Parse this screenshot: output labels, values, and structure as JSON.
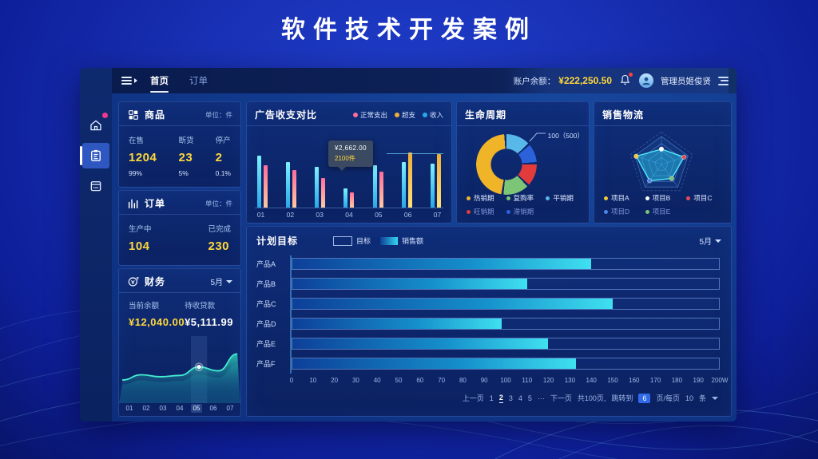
{
  "page": {
    "title": "软件技术开发案例"
  },
  "theme": {
    "accent_yellow": "#ffd83a",
    "accent_cyan": "#35c8f5",
    "background_blue": "#1830b4"
  },
  "topbar": {
    "tabs": [
      {
        "label": "首页",
        "active": true
      },
      {
        "label": "订单",
        "active": false
      }
    ],
    "balance_label": "账户余额：",
    "balance_value": "¥222,250.50",
    "admin_name": "管理员姬俊贤"
  },
  "sidebar": {
    "items": [
      {
        "name": "home",
        "badge": true,
        "active": false
      },
      {
        "name": "orders-board",
        "badge": false,
        "active": true
      },
      {
        "name": "archive",
        "badge": false,
        "active": false
      }
    ]
  },
  "goods_card": {
    "title": "商品",
    "unit": "单位：件",
    "stats": [
      {
        "label": "在售",
        "value": "1204",
        "sub": "99%"
      },
      {
        "label": "断货",
        "value": "23",
        "sub": "5%"
      },
      {
        "label": "停产",
        "value": "2",
        "sub": "0.1%"
      }
    ]
  },
  "orders_card": {
    "title": "订单",
    "unit": "单位：件",
    "stats": [
      {
        "label": "生产中",
        "value": "104"
      },
      {
        "label": "已完成",
        "value": "230"
      }
    ]
  },
  "finance_card": {
    "title": "财务",
    "period": "5月",
    "stats": [
      {
        "label": "当前余额",
        "value": "¥12,040.00"
      },
      {
        "label": "待收贷款",
        "value": "¥5,111.99"
      }
    ],
    "trend": {
      "type": "area",
      "months": [
        "01",
        "02",
        "03",
        "04",
        "05",
        "06",
        "07"
      ],
      "values": [
        28,
        36,
        33,
        35,
        48,
        42,
        68
      ],
      "highlight_index": 4,
      "line_color": "#45ecd2"
    }
  },
  "ad_chart": {
    "title": "广告收支对比",
    "type": "bar",
    "legend": [
      {
        "label": "正常支出",
        "color": "#ff6e9c",
        "color2": "#ffc9a0"
      },
      {
        "label": "超支",
        "color": "#f0ae36",
        "color2": "#ffe27a"
      },
      {
        "label": "收入",
        "color": "#2aa8e8",
        "color2": "#7ef0ff"
      }
    ],
    "categories": [
      "01",
      "02",
      "03",
      "04",
      "05",
      "06",
      "07"
    ],
    "income_values": [
      71,
      62,
      55,
      26,
      58,
      62,
      60
    ],
    "expense_values": [
      58,
      51,
      40,
      21,
      49,
      75,
      73
    ],
    "expense_types": [
      "normal",
      "normal",
      "normal",
      "normal",
      "normal",
      "over",
      "over"
    ],
    "tooltip": {
      "line1": "¥2,662.00",
      "line2": "2100件"
    },
    "refline_percent": 26
  },
  "lifecycle_card": {
    "title": "生命周期",
    "type": "donut",
    "annotation": "100（500）",
    "segments": [
      {
        "label": "平销期",
        "color": "#58b8e8",
        "value": 13
      },
      {
        "label": "滞销期",
        "color": "#2c62d9",
        "value": 10
      },
      {
        "label": "旺销期",
        "color": "#e23b3b",
        "value": 12
      },
      {
        "label": "复购率",
        "color": "#7cc576",
        "value": 14
      },
      {
        "label": "热销期",
        "color": "#f0b429",
        "value": 47
      }
    ],
    "legend_order": [
      4,
      3,
      0,
      2,
      1
    ]
  },
  "logistics_card": {
    "title": "销售物流",
    "type": "radar",
    "items": [
      {
        "label": "项目A",
        "color": "#f0c93a",
        "value": 0.95
      },
      {
        "label": "项目B",
        "color": "#ffffff",
        "value": 0.55
      },
      {
        "label": "项目C",
        "color": "#e84a5a",
        "value": 0.85
      },
      {
        "label": "项目D",
        "color": "#4a86e8",
        "value": 0.72
      },
      {
        "label": "项目E",
        "color": "#7cc576",
        "value": 0.62
      }
    ],
    "vertex_order": [
      1,
      2,
      4,
      3,
      0
    ]
  },
  "plan_chart": {
    "title": "计划目标",
    "type": "bar",
    "legend": [
      {
        "label": "目标",
        "type": "outline"
      },
      {
        "label": "销售额",
        "type": "gradient"
      }
    ],
    "period": "5月",
    "categories": [
      "产品A",
      "产品B",
      "产品C",
      "产品D",
      "产品E",
      "产品F"
    ],
    "values": [
      140,
      110,
      150,
      98,
      120,
      133
    ],
    "target": 200,
    "axis_max": 200,
    "axis_ticks": [
      "0",
      "10",
      "20",
      "30",
      "40",
      "50",
      "60",
      "70",
      "80",
      "90",
      "100",
      "110",
      "120",
      "130",
      "140",
      "150",
      "160",
      "170",
      "180",
      "190",
      "200W"
    ]
  },
  "pagination": {
    "prev": "上一页",
    "pages": [
      "1",
      "2",
      "3",
      "4",
      "5"
    ],
    "current": "2",
    "ellipsis": "···",
    "next": "下一页",
    "total": "共100页,",
    "jump_label": "跳转到",
    "jump_value": "6",
    "suffix": "页/每页",
    "per_page": "10",
    "unit": "条"
  }
}
